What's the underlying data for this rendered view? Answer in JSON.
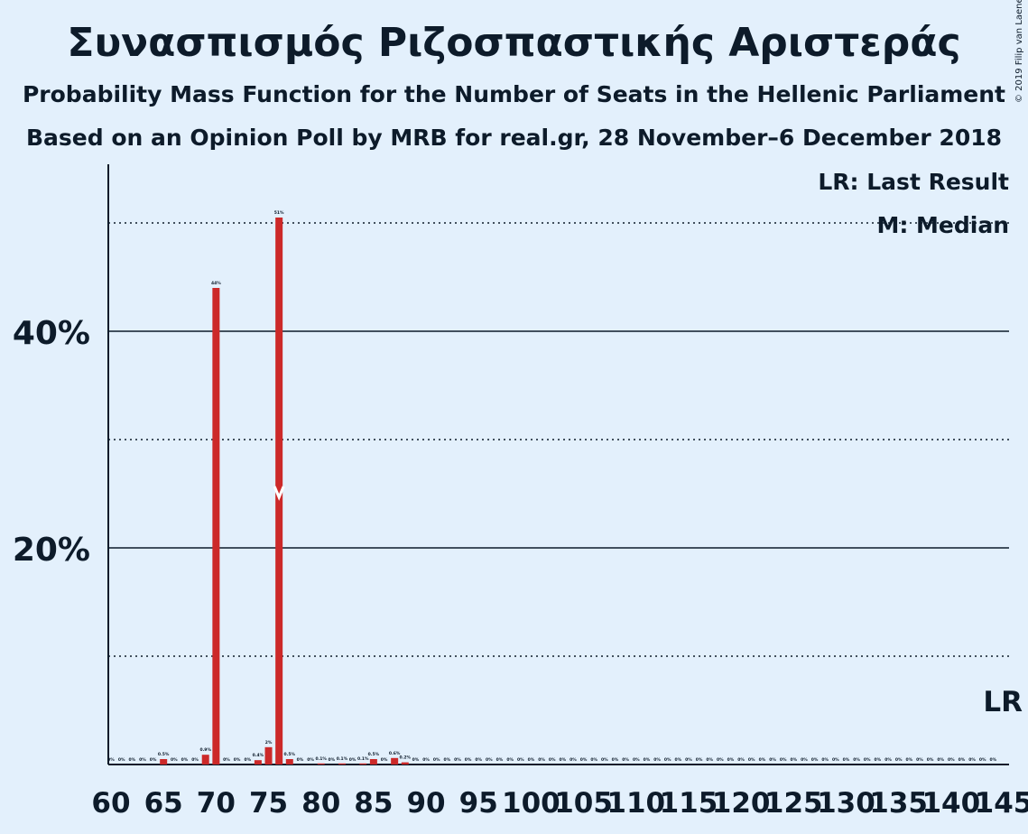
{
  "chart_data": {
    "type": "bar",
    "title": "Συνασπισμός Ριζοσπαστικής Αριστεράς",
    "subtitle": "Probability Mass Function for the Number of Seats in the Hellenic Parliament",
    "subtitle2": "Based on an Opinion Poll by MRB for real.gr, 28 November–6 December 2018",
    "copyright": "© 2019 Filip van Laenen",
    "xlabel": "",
    "ylabel": "",
    "xlim": [
      60,
      145
    ],
    "ylim": [
      0,
      55
    ],
    "y_ticks": [
      {
        "value": 20,
        "label": "20%"
      },
      {
        "value": 40,
        "label": "40%"
      }
    ],
    "x_ticks": [
      60,
      65,
      70,
      75,
      80,
      85,
      90,
      95,
      100,
      105,
      110,
      115,
      120,
      125,
      130,
      135,
      140,
      145
    ],
    "grid_major": [
      20,
      40
    ],
    "grid_minor": [
      10,
      30,
      50
    ],
    "bar_color": "#cc2929",
    "bars": [
      {
        "seats": 60,
        "value": 0,
        "label": "0%"
      },
      {
        "seats": 61,
        "value": 0,
        "label": "0%"
      },
      {
        "seats": 62,
        "value": 0,
        "label": "0%"
      },
      {
        "seats": 63,
        "value": 0,
        "label": "0%"
      },
      {
        "seats": 64,
        "value": 0,
        "label": "0%"
      },
      {
        "seats": 65,
        "value": 0.5,
        "label": "0.5%"
      },
      {
        "seats": 66,
        "value": 0,
        "label": "0%"
      },
      {
        "seats": 67,
        "value": 0,
        "label": "0%"
      },
      {
        "seats": 68,
        "value": 0,
        "label": "0%"
      },
      {
        "seats": 69,
        "value": 0.9,
        "label": "0.9%"
      },
      {
        "seats": 70,
        "value": 44,
        "label": "44%"
      },
      {
        "seats": 71,
        "value": 0,
        "label": "0%"
      },
      {
        "seats": 72,
        "value": 0,
        "label": "0%"
      },
      {
        "seats": 73,
        "value": 0,
        "label": "0%"
      },
      {
        "seats": 74,
        "value": 0.4,
        "label": "0.4%"
      },
      {
        "seats": 75,
        "value": 1.6,
        "label": "2%"
      },
      {
        "seats": 76,
        "value": 50.5,
        "label": "51%"
      },
      {
        "seats": 77,
        "value": 0.5,
        "label": "0.5%"
      },
      {
        "seats": 78,
        "value": 0,
        "label": "0%"
      },
      {
        "seats": 79,
        "value": 0,
        "label": "0%"
      },
      {
        "seats": 80,
        "value": 0.1,
        "label": "0.1%"
      },
      {
        "seats": 81,
        "value": 0,
        "label": "0%"
      },
      {
        "seats": 82,
        "value": 0.1,
        "label": "0.1%"
      },
      {
        "seats": 83,
        "value": 0,
        "label": "0%"
      },
      {
        "seats": 84,
        "value": 0.1,
        "label": "0.1%"
      },
      {
        "seats": 85,
        "value": 0.5,
        "label": "0.5%"
      },
      {
        "seats": 86,
        "value": 0,
        "label": "0%"
      },
      {
        "seats": 87,
        "value": 0.6,
        "label": "0.6%"
      },
      {
        "seats": 88,
        "value": 0.2,
        "label": "0.2%"
      },
      {
        "seats": 89,
        "value": 0,
        "label": "0%"
      },
      {
        "seats": 90,
        "value": 0,
        "label": "0%"
      },
      {
        "seats": 91,
        "value": 0,
        "label": "0%"
      },
      {
        "seats": 92,
        "value": 0,
        "label": "0%"
      },
      {
        "seats": 93,
        "value": 0,
        "label": "0%"
      },
      {
        "seats": 94,
        "value": 0,
        "label": "0%"
      },
      {
        "seats": 95,
        "value": 0,
        "label": "0%"
      },
      {
        "seats": 96,
        "value": 0,
        "label": "0%"
      },
      {
        "seats": 97,
        "value": 0,
        "label": "0%"
      },
      {
        "seats": 98,
        "value": 0,
        "label": "0%"
      },
      {
        "seats": 99,
        "value": 0,
        "label": "0%"
      },
      {
        "seats": 100,
        "value": 0,
        "label": "0%"
      },
      {
        "seats": 101,
        "value": 0,
        "label": "0%"
      },
      {
        "seats": 102,
        "value": 0,
        "label": "0%"
      },
      {
        "seats": 103,
        "value": 0,
        "label": "0%"
      },
      {
        "seats": 104,
        "value": 0,
        "label": "0%"
      },
      {
        "seats": 105,
        "value": 0,
        "label": "0%"
      },
      {
        "seats": 106,
        "value": 0,
        "label": "0%"
      },
      {
        "seats": 107,
        "value": 0,
        "label": "0%"
      },
      {
        "seats": 108,
        "value": 0,
        "label": "0%"
      },
      {
        "seats": 109,
        "value": 0,
        "label": "0%"
      },
      {
        "seats": 110,
        "value": 0,
        "label": "0%"
      },
      {
        "seats": 111,
        "value": 0,
        "label": "0%"
      },
      {
        "seats": 112,
        "value": 0,
        "label": "0%"
      },
      {
        "seats": 113,
        "value": 0,
        "label": "0%"
      },
      {
        "seats": 114,
        "value": 0,
        "label": "0%"
      },
      {
        "seats": 115,
        "value": 0,
        "label": "0%"
      },
      {
        "seats": 116,
        "value": 0,
        "label": "0%"
      },
      {
        "seats": 117,
        "value": 0,
        "label": "0%"
      },
      {
        "seats": 118,
        "value": 0,
        "label": "0%"
      },
      {
        "seats": 119,
        "value": 0,
        "label": "0%"
      },
      {
        "seats": 120,
        "value": 0,
        "label": "0%"
      },
      {
        "seats": 121,
        "value": 0,
        "label": "0%"
      },
      {
        "seats": 122,
        "value": 0,
        "label": "0%"
      },
      {
        "seats": 123,
        "value": 0,
        "label": "0%"
      },
      {
        "seats": 124,
        "value": 0,
        "label": "0%"
      },
      {
        "seats": 125,
        "value": 0,
        "label": "0%"
      },
      {
        "seats": 126,
        "value": 0,
        "label": "0%"
      },
      {
        "seats": 127,
        "value": 0,
        "label": "0%"
      },
      {
        "seats": 128,
        "value": 0,
        "label": "0%"
      },
      {
        "seats": 129,
        "value": 0,
        "label": "0%"
      },
      {
        "seats": 130,
        "value": 0,
        "label": "0%"
      },
      {
        "seats": 131,
        "value": 0,
        "label": "0%"
      },
      {
        "seats": 132,
        "value": 0,
        "label": "0%"
      },
      {
        "seats": 133,
        "value": 0,
        "label": "0%"
      },
      {
        "seats": 134,
        "value": 0,
        "label": "0%"
      },
      {
        "seats": 135,
        "value": 0,
        "label": "0%"
      },
      {
        "seats": 136,
        "value": 0,
        "label": "0%"
      },
      {
        "seats": 137,
        "value": 0,
        "label": "0%"
      },
      {
        "seats": 138,
        "value": 0,
        "label": "0%"
      },
      {
        "seats": 139,
        "value": 0,
        "label": "0%"
      },
      {
        "seats": 140,
        "value": 0,
        "label": "0%"
      },
      {
        "seats": 141,
        "value": 0,
        "label": "0%"
      },
      {
        "seats": 142,
        "value": 0,
        "label": "0%"
      },
      {
        "seats": 143,
        "value": 0,
        "label": "0%"
      },
      {
        "seats": 144,
        "value": 0,
        "label": "0%"
      }
    ],
    "median": {
      "seats": 76,
      "marker": "M",
      "value_pct": 25
    },
    "last_result": {
      "seats": 145,
      "marker": "LR"
    },
    "legend": {
      "position": "top-right",
      "entries": [
        "LR: Last Result",
        "M: Median"
      ]
    }
  }
}
